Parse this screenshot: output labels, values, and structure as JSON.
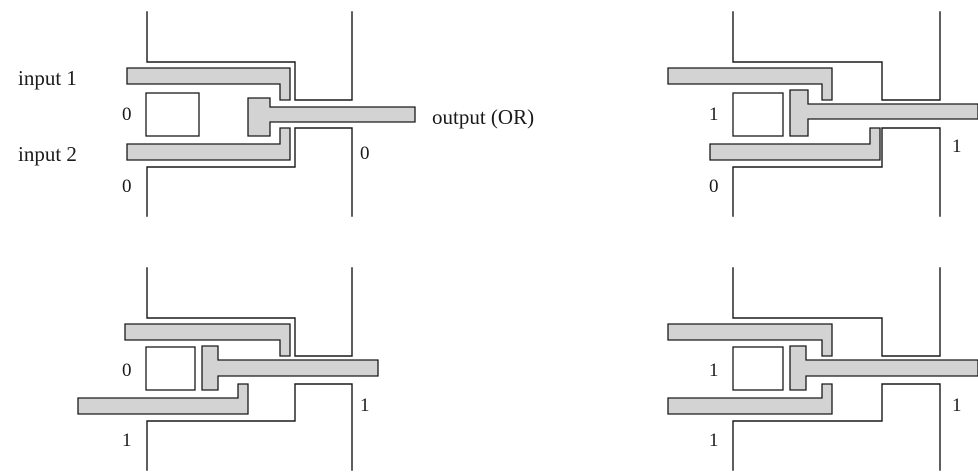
{
  "labels": {
    "input1": "input 1",
    "input2": "input 2",
    "output": "output (OR)"
  },
  "panels": [
    {
      "input1_value": "0",
      "input2_value": "0",
      "output_value": "0"
    },
    {
      "input1_value": "1",
      "input2_value": "0",
      "output_value": "1"
    },
    {
      "input1_value": "0",
      "input2_value": "1",
      "output_value": "1"
    },
    {
      "input1_value": "1",
      "input2_value": "1",
      "output_value": "1"
    }
  ]
}
